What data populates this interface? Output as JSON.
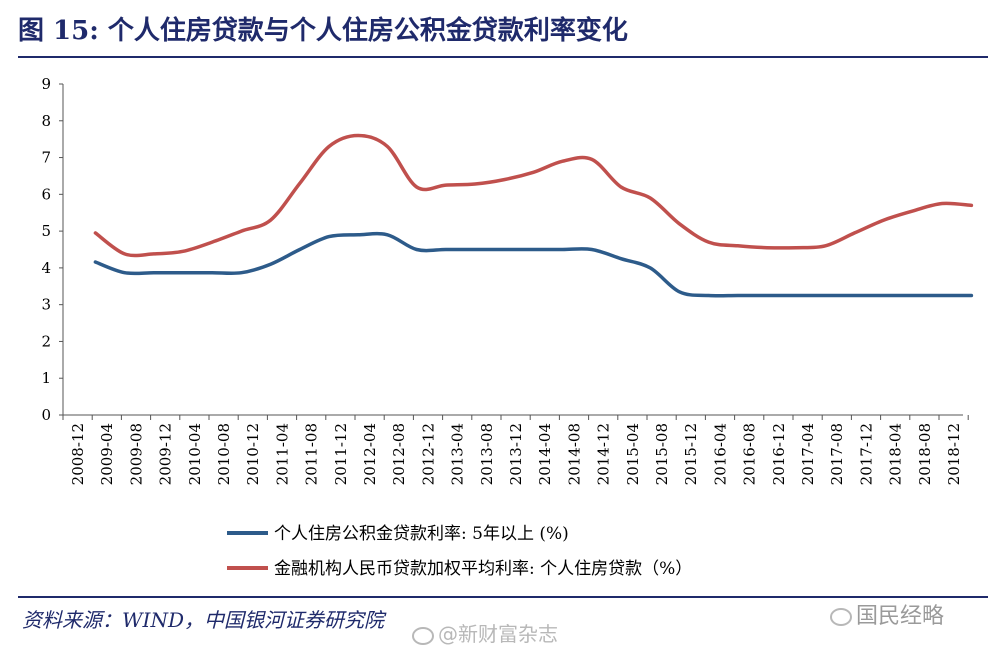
{
  "title": "图 15:  个人住房贷款与个人住房公积金贷款利率变化",
  "source": "资料来源：WIND，中国银河证券研究院",
  "watermarks": [
    "@新财富杂志",
    "国民经略"
  ],
  "chart_data": {
    "type": "line",
    "title": "",
    "xlabel": "",
    "ylabel": "",
    "ylim": [
      0,
      9
    ],
    "yticks": [
      0,
      1,
      2,
      3,
      4,
      5,
      6,
      7,
      8,
      9
    ],
    "grid": false,
    "legend_position": "bottom-center",
    "categories": [
      "2008-12",
      "2009-04",
      "2009-08",
      "2009-12",
      "2010-04",
      "2010-08",
      "2010-12",
      "2011-04",
      "2011-08",
      "2011-12",
      "2012-04",
      "2012-08",
      "2012-12",
      "2013-04",
      "2013-08",
      "2013-12",
      "2014-04",
      "2014-08",
      "2014-12",
      "2015-04",
      "2015-08",
      "2015-12",
      "2016-04",
      "2016-08",
      "2016-12",
      "2017-04",
      "2017-08",
      "2017-12",
      "2018-04",
      "2018-08",
      "2018-12"
    ],
    "series": [
      {
        "name": "个人住房公积金贷款利率: 5年以上 (%)",
        "color": "#2d5b8a",
        "values": [
          4.16,
          3.87,
          3.87,
          3.87,
          3.87,
          3.87,
          4.1,
          4.5,
          4.85,
          4.9,
          4.9,
          4.5,
          4.5,
          4.5,
          4.5,
          4.5,
          4.5,
          4.5,
          4.25,
          4.0,
          3.35,
          3.25,
          3.25,
          3.25,
          3.25,
          3.25,
          3.25,
          3.25,
          3.25,
          3.25,
          3.25
        ]
      },
      {
        "name": "金融机构人民币贷款加权平均利率: 个人住房贷款（%）",
        "color": "#c0504d",
        "values": [
          4.95,
          4.38,
          4.38,
          4.45,
          4.7,
          5.0,
          5.3,
          6.3,
          7.3,
          7.6,
          7.3,
          6.2,
          6.25,
          6.28,
          6.4,
          6.6,
          6.9,
          6.95,
          6.2,
          5.9,
          5.2,
          4.7,
          4.6,
          4.55,
          4.55,
          4.6,
          4.95,
          5.3,
          5.55,
          5.75,
          5.7
        ]
      }
    ]
  }
}
